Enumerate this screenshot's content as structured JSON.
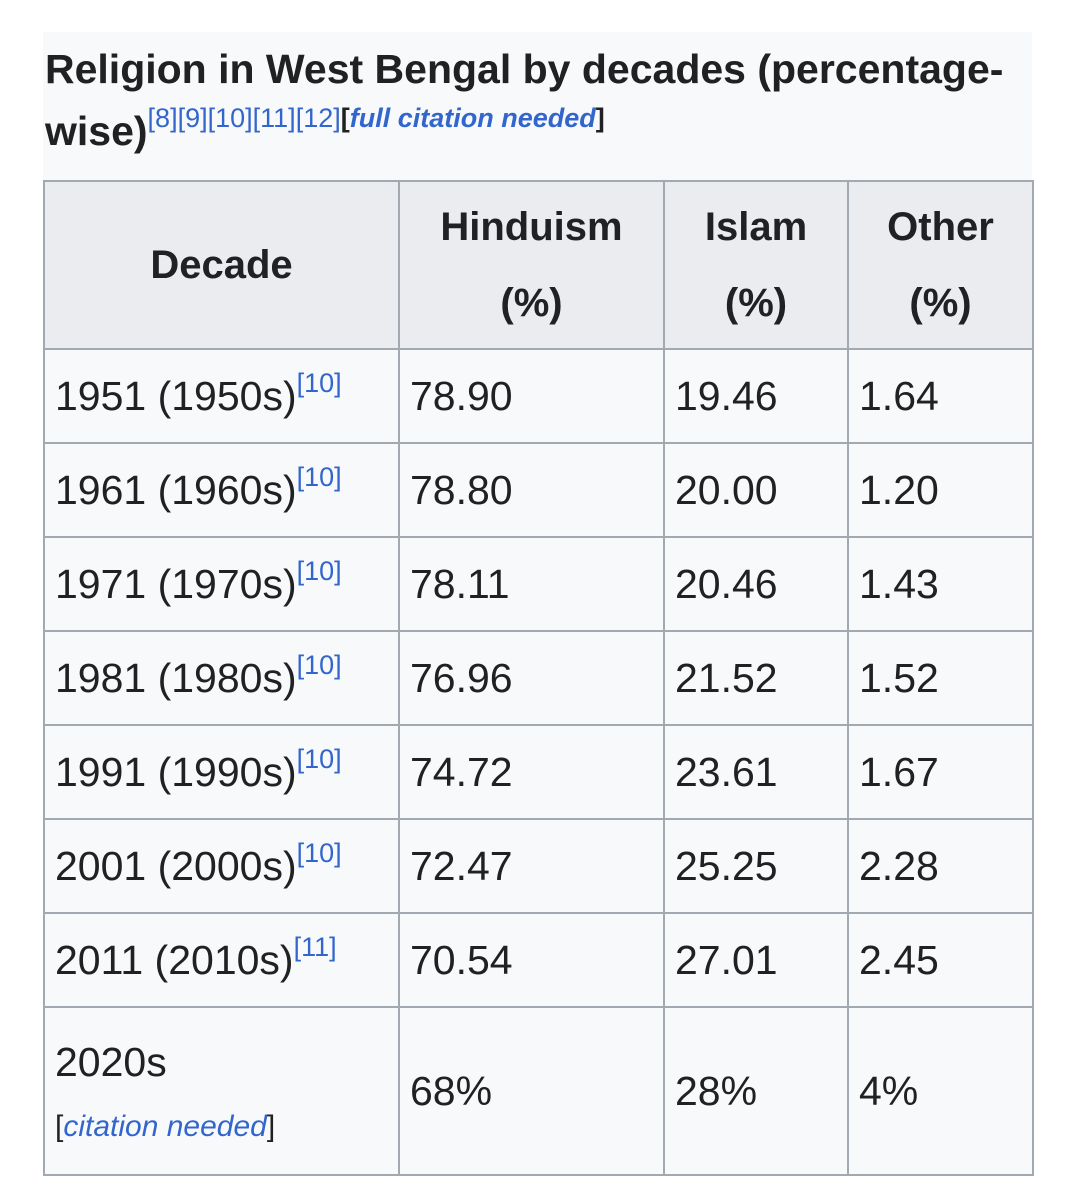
{
  "caption": {
    "title": "Religion in West Bengal by decades (percentage-wise)",
    "refs": [
      "[8]",
      "[9]",
      "[10]",
      "[11]",
      "[12]"
    ],
    "citation_open": "[",
    "citation_text": "full citation needed",
    "citation_close": "]"
  },
  "table": {
    "headers": {
      "decade": "Decade",
      "hinduism": "Hinduism",
      "islam": "Islam",
      "other": "Other",
      "unit": "(%)"
    },
    "rows": [
      {
        "decade": "1951 (1950s)",
        "ref": "[10]",
        "hinduism": "78.90",
        "islam": "19.46",
        "other": "1.64"
      },
      {
        "decade": "1961 (1960s)",
        "ref": "[10]",
        "hinduism": "78.80",
        "islam": "20.00",
        "other": "1.20"
      },
      {
        "decade": "1971 (1970s)",
        "ref": "[10]",
        "hinduism": "78.11",
        "islam": "20.46",
        "other": "1.43"
      },
      {
        "decade": "1981 (1980s)",
        "ref": "[10]",
        "hinduism": "76.96",
        "islam": "21.52",
        "other": "1.52"
      },
      {
        "decade": "1991 (1990s)",
        "ref": "[10]",
        "hinduism": "74.72",
        "islam": "23.61",
        "other": "1.67"
      },
      {
        "decade": "2001 (2000s)",
        "ref": "[10]",
        "hinduism": "72.47",
        "islam": "25.25",
        "other": "2.28"
      },
      {
        "decade": "2011 (2010s)",
        "ref": "[11]",
        "hinduism": "70.54",
        "islam": "27.01",
        "other": "2.45"
      }
    ],
    "last_row": {
      "decade": "2020s",
      "citation_open": "[",
      "citation_text": "citation needed",
      "citation_close": "]",
      "hinduism": "68%",
      "islam": "28%",
      "other": "4%"
    }
  },
  "colors": {
    "link": "#3366cc",
    "header_bg": "#eaecf0",
    "table_bg": "#f8f9fa",
    "border": "#a2a9b1",
    "text": "#202122"
  }
}
